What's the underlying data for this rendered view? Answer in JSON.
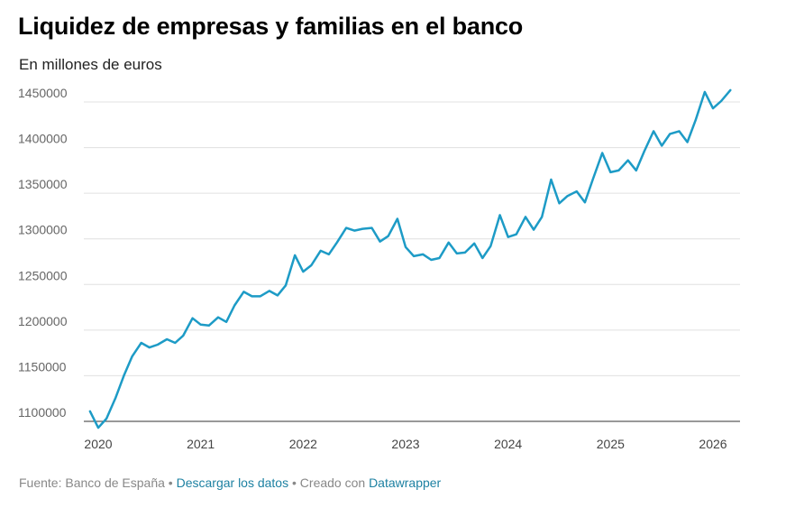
{
  "title": "Liquidez de empresas y familias en el banco",
  "subtitle": "En millones de euros",
  "footer": {
    "source": "Fuente: Banco de España",
    "sep1": " • ",
    "download": "Descargar los datos",
    "sep2": " • Creado con ",
    "tool": "Datawrapper"
  },
  "colors": {
    "line": "#1d9bc6",
    "grid": "#e0e0e0",
    "link": "#1d81a2"
  },
  "chart_data": {
    "type": "line",
    "title": "Liquidez de empresas y familias en el banco",
    "ylabel": "",
    "xlabel": "",
    "ylim": [
      1090000,
      1470000
    ],
    "xlim": [
      2020.0,
      2026.17
    ],
    "y_ticks": [
      1100000,
      1150000,
      1200000,
      1250000,
      1300000,
      1350000,
      1400000,
      1450000
    ],
    "x_ticks": [
      2020,
      2021,
      2022,
      2023,
      2024,
      2025,
      2026
    ],
    "grid": "horizontal",
    "series": [
      {
        "x": [
          2019.92,
          2020.0,
          2020.08,
          2020.17,
          2020.25,
          2020.33,
          2020.42,
          2020.5,
          2020.58,
          2020.67,
          2020.75,
          2020.83,
          2020.92,
          2021.0,
          2021.08,
          2021.17,
          2021.25,
          2021.33,
          2021.42,
          2021.5,
          2021.58,
          2021.67,
          2021.75,
          2021.83,
          2021.92,
          2022.0,
          2022.08,
          2022.17,
          2022.25,
          2022.33,
          2022.42,
          2022.5,
          2022.58,
          2022.67,
          2022.75,
          2022.83,
          2022.92,
          2023.0,
          2023.08,
          2023.17,
          2023.25,
          2023.33,
          2023.42,
          2023.5,
          2023.58,
          2023.67,
          2023.75,
          2023.83,
          2023.92,
          2024.0,
          2024.08,
          2024.17,
          2024.25,
          2024.33,
          2024.42,
          2024.5,
          2024.58,
          2024.67,
          2024.75,
          2024.83,
          2024.92,
          2025.0,
          2025.08,
          2025.17,
          2025.25,
          2025.33,
          2025.42,
          2025.5,
          2025.58,
          2025.67,
          2025.75,
          2025.83,
          2025.92,
          2026.0,
          2026.08,
          2026.17
        ],
        "values": [
          1111000,
          1093000,
          1103000,
          1126000,
          1150000,
          1171000,
          1186000,
          1181000,
          1184000,
          1190000,
          1186000,
          1194000,
          1213000,
          1206000,
          1205000,
          1214000,
          1209000,
          1227000,
          1242000,
          1237000,
          1237000,
          1243000,
          1238000,
          1249000,
          1282000,
          1264000,
          1271000,
          1287000,
          1283000,
          1296000,
          1312000,
          1309000,
          1311000,
          1312000,
          1297000,
          1303000,
          1322000,
          1291000,
          1281000,
          1283000,
          1277000,
          1279000,
          1296000,
          1284000,
          1285000,
          1295000,
          1279000,
          1292000,
          1326000,
          1302000,
          1305000,
          1324000,
          1310000,
          1324000,
          1365000,
          1339000,
          1347000,
          1352000,
          1340000,
          1366000,
          1394000,
          1373000,
          1375000,
          1386000,
          1375000,
          1396000,
          1418000,
          1402000,
          1415000,
          1418000,
          1406000,
          1430000,
          1461000,
          1443000,
          1451000,
          1463000
        ]
      }
    ]
  }
}
